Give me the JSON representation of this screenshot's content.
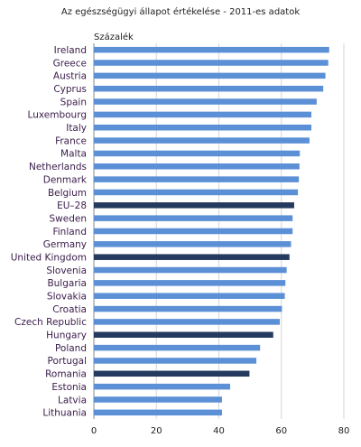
{
  "chart_data": {
    "type": "bar",
    "orientation": "horizontal",
    "title": "Az egészségügyi állapot értékelése - 2011-es adatok",
    "unit_label": "Százalék",
    "xlabel": "",
    "ylabel": "",
    "xlim": [
      0,
      80
    ],
    "ticks": [
      "0",
      "20",
      "40",
      "60",
      "80"
    ],
    "grid": true,
    "legend": "none",
    "colors": {
      "default": "#5b8fd6",
      "highlight": "#243a5e"
    },
    "categories": [
      "Ireland",
      "Greece",
      "Austria",
      "Cyprus",
      "Spain",
      "Luxembourg",
      "Italy",
      "France",
      "Malta",
      "Netherlands",
      "Denmark",
      "Belgium",
      "EU–28",
      "Sweden",
      "Finland",
      "Germany",
      "United Kingdom",
      "Slovenia",
      "Bulgaria",
      "Slovakia",
      "Croatia",
      "Czech Republic",
      "Hungary",
      "Poland",
      "Portugal",
      "Romania",
      "Estonia",
      "Latvia",
      "Lithuania"
    ],
    "values": [
      75.3,
      75.0,
      74.1,
      73.4,
      71.3,
      69.6,
      69.6,
      69.0,
      65.9,
      65.8,
      65.6,
      65.3,
      64.1,
      63.6,
      63.6,
      63.1,
      62.6,
      61.7,
      61.3,
      61.1,
      60.2,
      59.5,
      57.4,
      53.2,
      52.0,
      49.8,
      43.6,
      41.0,
      41.0
    ],
    "highlighted": [
      "EU–28",
      "United Kingdom",
      "Hungary",
      "Romania"
    ]
  }
}
